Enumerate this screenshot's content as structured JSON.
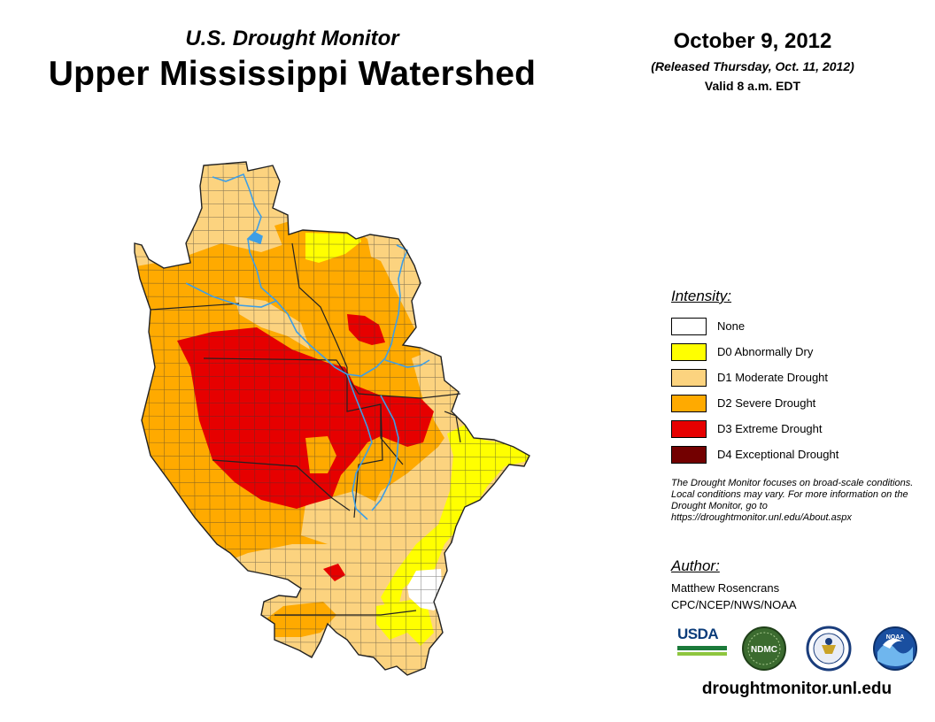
{
  "header": {
    "subtitle": "U.S. Drought Monitor",
    "title": "Upper Mississippi Watershed",
    "date": "October 9, 2012",
    "released": "(Released Thursday, Oct. 11, 2012)",
    "valid": "Valid 8 a.m. EDT"
  },
  "legend": {
    "heading": "Intensity:",
    "items": [
      {
        "label": "None",
        "color": "#ffffff"
      },
      {
        "label": "D0 Abnormally Dry",
        "color": "#ffff00"
      },
      {
        "label": "D1 Moderate Drought",
        "color": "#fcd37f"
      },
      {
        "label": "D2 Severe Drought",
        "color": "#ffaa00"
      },
      {
        "label": "D3 Extreme Drought",
        "color": "#e60000"
      },
      {
        "label": "D4 Exceptional Drought",
        "color": "#730000"
      }
    ]
  },
  "disclaimer": "The Drought Monitor focuses on broad-scale conditions. Local conditions may vary. For more information on the Drought Monitor, go to https://droughtmonitor.unl.edu/About.aspx",
  "author": {
    "heading": "Author:",
    "name": "Matthew Rosencrans",
    "org": "CPC/NCEP/NWS/NOAA"
  },
  "logos": {
    "usda": "USDA",
    "ndmc": "NDMC",
    "doc": "commerce-seal-icon",
    "noaa": "NOAA"
  },
  "footer": {
    "url": "droughtmonitor.unl.edu"
  },
  "map_colors": {
    "river": "#3d9ee6",
    "border": "#3a3a3a"
  }
}
